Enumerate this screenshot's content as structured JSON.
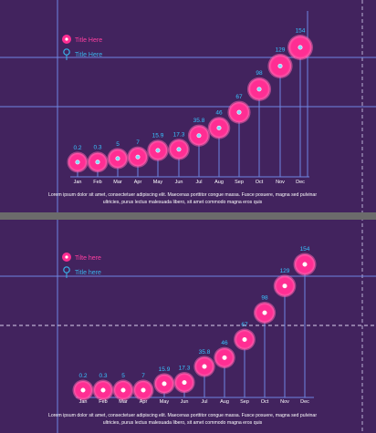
{
  "colors": {
    "background": "#42235e",
    "guide": "#6f86e2",
    "bubble": "#ff2e93",
    "bubble_glow": "#ff5fae",
    "value_text": "#38c4ff",
    "legend_text": "#ff3fa0",
    "legend_text_2": "#39b3ea",
    "month_text": "#ffffff",
    "separator": "#6b6b6b",
    "footer_text": "#ffffff"
  },
  "chart_data": [
    {
      "type": "bubble-stem",
      "legend": [
        "Title Here",
        "Title Here"
      ],
      "categories": [
        "Jan",
        "Feb",
        "Mar",
        "Apr",
        "May",
        "Jun",
        "Jul",
        "Aug",
        "Sep",
        "Oct",
        "Nov",
        "Dec"
      ],
      "values": [
        0.2,
        0.3,
        5,
        7,
        15.9,
        17.3,
        35.8,
        46,
        67,
        98,
        129,
        154
      ],
      "value_labels": [
        "0.2",
        "0.3",
        "5",
        "7",
        "15.9",
        "17.3",
        "35.8",
        "46",
        "67",
        "98",
        "129",
        "154"
      ],
      "footer": "Lorem ipsum dolor sit amet, consectetuer adipiscing elit. Maecenas porttitor congue massa. Fusce posuere, magna sed pulvinar ultricies, purus lectus malesuada libero, sit amet commodo magna eros quis"
    },
    {
      "type": "bubble-stem",
      "legend": [
        "Tilte here",
        "Title here"
      ],
      "categories": [
        "Jan",
        "Feb",
        "Mar",
        "Apr",
        "May",
        "Jun",
        "Jul",
        "Aug",
        "Sep",
        "Oct",
        "Nov",
        "Dec"
      ],
      "values": [
        0.2,
        0.3,
        5,
        7,
        15.9,
        17.3,
        35.8,
        46,
        67,
        98,
        129,
        154
      ],
      "value_labels": [
        "0.2",
        "0.3",
        "5",
        "7",
        "15.9",
        "17.3",
        "35.8",
        "46",
        "67",
        "98",
        "129",
        "154"
      ],
      "footer": "Lorem ipsum dolor sit amet, consectetuer adipiscing elit. Maecenas porttitor congue massa. Fusce posuere, magna sed pulvinar ultricies, purus lectus malesuada libero, sit amet commodo magna eros quis"
    }
  ]
}
